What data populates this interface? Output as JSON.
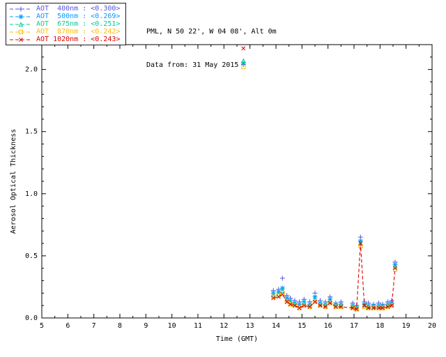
{
  "header": {
    "line1": "PML, N 50 22', W 04 08', Alt 0m",
    "line2": "Data from: 31 May 2015"
  },
  "chart_data": {
    "type": "scatter",
    "title": "",
    "xlabel": "Time (GMT)",
    "ylabel": "Aerosol Optical Thickness",
    "xlim": [
      5,
      20
    ],
    "ylim": [
      0,
      2.2
    ],
    "xticks": [
      5,
      6,
      7,
      8,
      9,
      10,
      11,
      12,
      13,
      14,
      15,
      16,
      17,
      18,
      19,
      20
    ],
    "yticks": [
      0.0,
      0.5,
      1.0,
      1.5,
      2.0
    ],
    "x_minor_step": 0.5,
    "y_minor_step": 0.1,
    "x": [
      12.75,
      13.9,
      14.1,
      14.25,
      14.42,
      14.55,
      14.72,
      14.9,
      15.08,
      15.3,
      15.5,
      15.7,
      15.9,
      16.08,
      16.3,
      16.5,
      16.95,
      17.1,
      17.25,
      17.4,
      17.55,
      17.75,
      17.95,
      18.1,
      18.3,
      18.45,
      18.58
    ],
    "series": [
      {
        "name": "AOT 400nm",
        "legend_label": "AOT  400nm : <0.300>",
        "mean": "<0.300>",
        "color": "#5555dd",
        "marker": "plus",
        "line": false,
        "values": [
          2.04,
          0.22,
          0.23,
          0.32,
          0.18,
          0.16,
          0.14,
          0.13,
          0.15,
          0.13,
          0.2,
          0.14,
          0.13,
          0.17,
          0.12,
          0.13,
          0.12,
          0.1,
          0.65,
          0.13,
          0.12,
          0.11,
          0.12,
          0.11,
          0.13,
          0.14,
          0.45
        ]
      },
      {
        "name": "AOT 500nm",
        "legend_label": "AOT  500nm : <0.269>",
        "mean": "<0.269>",
        "color": "#0099ff",
        "marker": "asterisk",
        "line": false,
        "values": [
          2.05,
          0.2,
          0.21,
          0.24,
          0.16,
          0.14,
          0.12,
          0.11,
          0.13,
          0.11,
          0.17,
          0.12,
          0.11,
          0.15,
          0.11,
          0.11,
          0.1,
          0.09,
          0.62,
          0.11,
          0.1,
          0.1,
          0.1,
          0.1,
          0.11,
          0.12,
          0.43
        ]
      },
      {
        "name": "AOT 675nm",
        "legend_label": "AOT  675nm : <0.251>",
        "mean": "<0.251>",
        "color": "#00cc99",
        "marker": "triangle",
        "line": false,
        "values": [
          2.07,
          0.19,
          0.19,
          0.22,
          0.15,
          0.13,
          0.11,
          0.1,
          0.12,
          0.1,
          0.15,
          0.11,
          0.1,
          0.13,
          0.1,
          0.1,
          0.09,
          0.08,
          0.6,
          0.1,
          0.09,
          0.09,
          0.09,
          0.09,
          0.1,
          0.11,
          0.41
        ]
      },
      {
        "name": "AOT 870nm",
        "legend_label": "AOT  870nm : <0.242>",
        "mean": "<0.242>",
        "color": "#ffbb00",
        "marker": "square",
        "line": false,
        "values": [
          2.02,
          0.17,
          0.18,
          0.2,
          0.13,
          0.11,
          0.1,
          0.08,
          0.1,
          0.09,
          0.13,
          0.1,
          0.09,
          0.12,
          0.09,
          0.09,
          0.08,
          0.07,
          0.58,
          0.09,
          0.08,
          0.08,
          0.08,
          0.08,
          0.09,
          0.1,
          0.39
        ]
      },
      {
        "name": "AOT 1020nm",
        "legend_label": "AOT 1020nm : <0.243>",
        "mean": "<0.243>",
        "color": "#dd0000",
        "marker": "x",
        "line": true,
        "line_start_index": 1,
        "values": [
          2.17,
          0.16,
          0.17,
          0.19,
          0.13,
          0.11,
          0.1,
          0.08,
          0.1,
          0.09,
          0.13,
          0.1,
          0.09,
          0.12,
          0.09,
          0.09,
          0.08,
          0.07,
          0.6,
          0.1,
          0.08,
          0.08,
          0.08,
          0.08,
          0.09,
          0.1,
          0.4
        ]
      }
    ],
    "legend_position": "top-left",
    "grid": false
  }
}
